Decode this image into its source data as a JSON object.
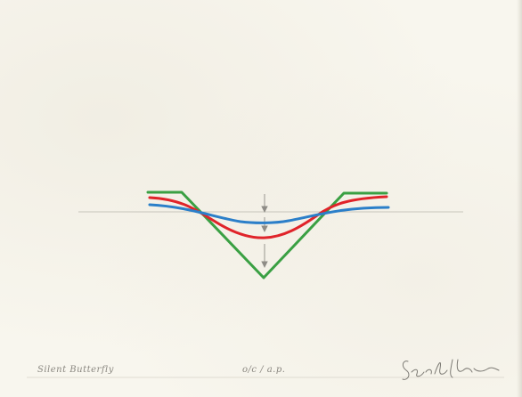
{
  "artwork": {
    "title": "Silent Butterfly",
    "edition": "o/c / a.p.",
    "signature_color": "#7c7a74"
  },
  "curves": {
    "green": "#3aa043",
    "red": "#e0242a",
    "blue": "#2b7fc9",
    "guide_line": "#b9b6ad",
    "arrows": "#8e8c86"
  }
}
